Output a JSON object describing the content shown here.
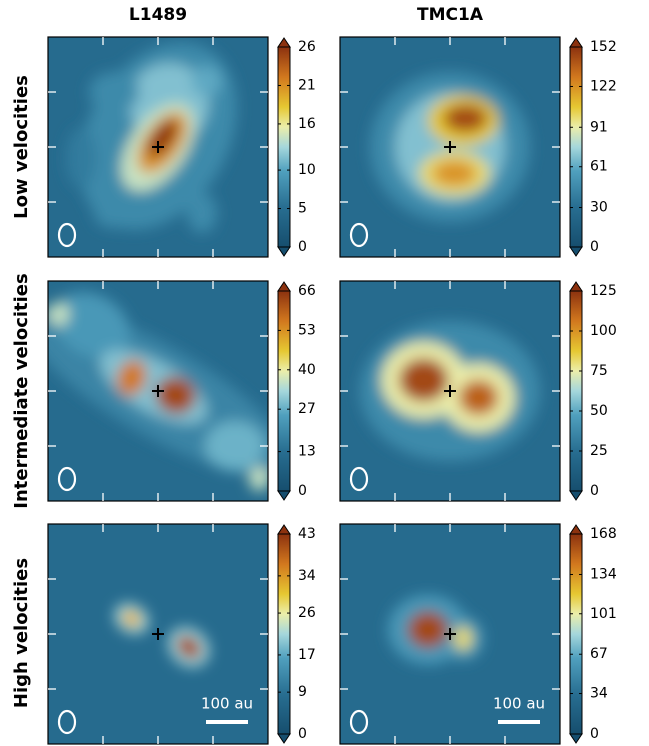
{
  "column_titles": [
    "L1489",
    "TMC1A"
  ],
  "row_titles": [
    "Low velocities",
    "Intermediate velocities",
    "High velocities"
  ],
  "scale_bar": "100 au",
  "chart_data": [
    {
      "type": "heatmap",
      "zlim": [
        0,
        26
      ],
      "zticks": [
        0,
        5,
        10,
        16,
        21,
        26
      ]
    },
    {
      "type": "heatmap",
      "zlim": [
        0,
        152
      ],
      "zticks": [
        0,
        30,
        61,
        91,
        122,
        152
      ]
    },
    {
      "type": "heatmap",
      "zlim": [
        0,
        66
      ],
      "zticks": [
        0,
        13,
        27,
        40,
        53,
        66
      ]
    },
    {
      "type": "heatmap",
      "zlim": [
        0,
        125
      ],
      "zticks": [
        0,
        25,
        50,
        75,
        100,
        125
      ]
    },
    {
      "type": "heatmap",
      "zlim": [
        0,
        43
      ],
      "zticks": [
        0,
        9,
        17,
        26,
        34,
        43
      ]
    },
    {
      "type": "heatmap",
      "zlim": [
        0,
        168
      ],
      "zticks": [
        0,
        34,
        67,
        101,
        134,
        168
      ]
    }
  ]
}
